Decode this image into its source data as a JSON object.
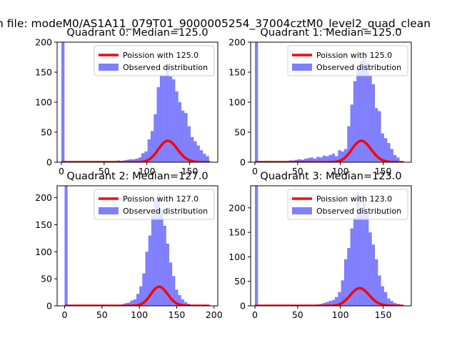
{
  "suptitle": "n file: modeM0/AS1A11_079T01_9000005254_37004cztM0_level2_quad_clean",
  "colors": {
    "poisson": "#ff0000",
    "observed": "#0000ff",
    "observed_alpha": 0.5
  },
  "chart_data": [
    {
      "type": "bar",
      "title": "Quadrant 0: Median=125.0",
      "xlim": [
        -5,
        183
      ],
      "ylim": [
        0,
        200
      ],
      "xticks": [
        0,
        50,
        100,
        150
      ],
      "yticks": [
        0,
        50,
        100,
        150,
        200
      ],
      "legend_position": "top-right",
      "legend": [
        "Poission with 125.0",
        "Observed distribution"
      ],
      "series": [
        {
          "name": "Poission with 125.0",
          "type": "line",
          "mean": 125.0,
          "scale": 1000,
          "x_range": [
            0,
            174
          ]
        },
        {
          "name": "Observed distribution",
          "type": "histogram",
          "bin_width": 3.6,
          "bins": [
            [
              0,
              200
            ],
            [
              3.6,
              2
            ],
            [
              7.2,
              2
            ],
            [
              10.8,
              2
            ],
            [
              14.4,
              2
            ],
            [
              18,
              2
            ],
            [
              21.6,
              2
            ],
            [
              25.2,
              2
            ],
            [
              28.8,
              2
            ],
            [
              32.4,
              2
            ],
            [
              36,
              2
            ],
            [
              39.6,
              2
            ],
            [
              43.2,
              2
            ],
            [
              46.8,
              2
            ],
            [
              50.4,
              2
            ],
            [
              54,
              2
            ],
            [
              57.6,
              2
            ],
            [
              61.2,
              2
            ],
            [
              64.8,
              3
            ],
            [
              68.4,
              2
            ],
            [
              72,
              3
            ],
            [
              75.6,
              4
            ],
            [
              79.2,
              5
            ],
            [
              82.8,
              5
            ],
            [
              86.4,
              6
            ],
            [
              90,
              8
            ],
            [
              93.6,
              15
            ],
            [
              97.2,
              18
            ],
            [
              100.8,
              38
            ],
            [
              104.4,
              52
            ],
            [
              108,
              80
            ],
            [
              111.6,
              125
            ],
            [
              115.2,
              146
            ],
            [
              118.8,
              145
            ],
            [
              122.4,
              160
            ],
            [
              126,
              143
            ],
            [
              129.6,
              138
            ],
            [
              133.2,
              118
            ],
            [
              136.8,
              100
            ],
            [
              140.4,
              86
            ],
            [
              144,
              82
            ],
            [
              147.6,
              60
            ],
            [
              151.2,
              42
            ],
            [
              154.8,
              35
            ],
            [
              158.4,
              28
            ],
            [
              162,
              20
            ],
            [
              165.6,
              14
            ],
            [
              169.2,
              10
            ]
          ]
        }
      ]
    },
    {
      "type": "bar",
      "title": "Quadrant 1: Median=125.0",
      "xlim": [
        -5,
        183
      ],
      "ylim": [
        0,
        200
      ],
      "xticks": [
        0,
        50,
        100,
        150
      ],
      "yticks": [
        0,
        50,
        100,
        150,
        200
      ],
      "legend_position": "top-right",
      "legend": [
        "Poission with 125.0",
        "Observed distribution"
      ],
      "series": [
        {
          "name": "Poission with 125.0",
          "type": "line",
          "mean": 125.0,
          "scale": 1000,
          "x_range": [
            0,
            174
          ]
        },
        {
          "name": "Observed distribution",
          "type": "histogram",
          "bin_width": 3.6,
          "bins": [
            [
              0,
              200
            ],
            [
              3.6,
              2
            ],
            [
              7.2,
              2
            ],
            [
              10.8,
              2
            ],
            [
              14.4,
              2
            ],
            [
              18,
              2
            ],
            [
              21.6,
              2
            ],
            [
              25.2,
              2
            ],
            [
              28.8,
              2
            ],
            [
              32.4,
              2
            ],
            [
              36,
              2
            ],
            [
              39.6,
              3
            ],
            [
              43.2,
              3
            ],
            [
              46.8,
              4
            ],
            [
              50.4,
              5
            ],
            [
              54,
              4
            ],
            [
              57.6,
              6
            ],
            [
              61.2,
              7
            ],
            [
              64.8,
              8
            ],
            [
              68.4,
              6
            ],
            [
              72,
              9
            ],
            [
              75.6,
              8
            ],
            [
              79.2,
              11
            ],
            [
              82.8,
              10
            ],
            [
              86.4,
              12
            ],
            [
              90,
              14
            ],
            [
              93.6,
              10
            ],
            [
              97.2,
              20
            ],
            [
              100.8,
              18
            ],
            [
              104.4,
              22
            ],
            [
              108,
              60
            ],
            [
              111.6,
              96
            ],
            [
              115.2,
              135
            ],
            [
              118.8,
              158
            ],
            [
              122.4,
              168
            ],
            [
              126,
              180
            ],
            [
              129.6,
              165
            ],
            [
              133.2,
              145
            ],
            [
              136.8,
              130
            ],
            [
              140.4,
              90
            ],
            [
              144,
              85
            ],
            [
              147.6,
              48
            ],
            [
              151.2,
              40
            ],
            [
              154.8,
              32
            ],
            [
              158.4,
              22
            ],
            [
              162,
              12
            ],
            [
              165.6,
              8
            ]
          ]
        }
      ]
    },
    {
      "type": "bar",
      "title": "Quadrant 2: Median=127.0",
      "xlim": [
        -10,
        205
      ],
      "ylim": [
        0,
        222
      ],
      "xticks": [
        0,
        50,
        100,
        150,
        200
      ],
      "yticks": [
        0,
        50,
        100,
        150,
        200
      ],
      "legend_position": "top-right",
      "legend": [
        "Poission with 127.0",
        "Observed distribution"
      ],
      "series": [
        {
          "name": "Poission with 127.0",
          "type": "line",
          "mean": 127.0,
          "scale": 1000,
          "x_range": [
            0,
            194
          ]
        },
        {
          "name": "Observed distribution",
          "type": "histogram",
          "bin_width": 4,
          "bins": [
            [
              0,
              222
            ],
            [
              4,
              1
            ],
            [
              8,
              1
            ],
            [
              12,
              1
            ],
            [
              16,
              1
            ],
            [
              20,
              1
            ],
            [
              24,
              1
            ],
            [
              28,
              1
            ],
            [
              32,
              1
            ],
            [
              36,
              1
            ],
            [
              40,
              1
            ],
            [
              44,
              1
            ],
            [
              48,
              1
            ],
            [
              52,
              1
            ],
            [
              56,
              1
            ],
            [
              60,
              1
            ],
            [
              64,
              1
            ],
            [
              68,
              1
            ],
            [
              72,
              2
            ],
            [
              76,
              3
            ],
            [
              80,
              5
            ],
            [
              84,
              6
            ],
            [
              88,
              10
            ],
            [
              92,
              12
            ],
            [
              96,
              22
            ],
            [
              100,
              36
            ],
            [
              104,
              60
            ],
            [
              108,
              100
            ],
            [
              112,
              130
            ],
            [
              116,
              168
            ],
            [
              120,
              198
            ],
            [
              124,
              208
            ],
            [
              128,
              180
            ],
            [
              132,
              148
            ],
            [
              136,
              115
            ],
            [
              140,
              80
            ],
            [
              144,
              55
            ],
            [
              148,
              30
            ],
            [
              152,
              20
            ],
            [
              156,
              12
            ],
            [
              160,
              7
            ],
            [
              164,
              4
            ],
            [
              168,
              2
            ],
            [
              172,
              1
            ],
            [
              176,
              1
            ],
            [
              180,
              1
            ],
            [
              184,
              1
            ],
            [
              188,
              1
            ],
            [
              192,
              1
            ]
          ]
        }
      ]
    },
    {
      "type": "bar",
      "title": "Quadrant 3: Median=123.0",
      "xlim": [
        -5,
        183
      ],
      "ylim": [
        0,
        245
      ],
      "xticks": [
        0,
        50,
        100,
        150
      ],
      "yticks": [
        0,
        50,
        100,
        150,
        200
      ],
      "legend_position": "top-right",
      "legend": [
        "Poission with 123.0",
        "Observed distribution"
      ],
      "series": [
        {
          "name": "Poission with 123.0",
          "type": "line",
          "mean": 123.0,
          "scale": 1000,
          "x_range": [
            0,
            174
          ]
        },
        {
          "name": "Observed distribution",
          "type": "histogram",
          "bin_width": 3.6,
          "bins": [
            [
              0,
              245
            ],
            [
              3.6,
              1
            ],
            [
              7.2,
              1
            ],
            [
              10.8,
              1
            ],
            [
              14.4,
              1
            ],
            [
              18,
              1
            ],
            [
              21.6,
              1
            ],
            [
              25.2,
              1
            ],
            [
              28.8,
              1
            ],
            [
              32.4,
              1
            ],
            [
              36,
              1
            ],
            [
              39.6,
              1
            ],
            [
              43.2,
              1
            ],
            [
              46.8,
              1
            ],
            [
              50.4,
              1
            ],
            [
              54,
              1
            ],
            [
              57.6,
              1
            ],
            [
              61.2,
              1
            ],
            [
              64.8,
              2
            ],
            [
              68.4,
              2
            ],
            [
              72,
              3
            ],
            [
              75.6,
              4
            ],
            [
              79.2,
              6
            ],
            [
              82.8,
              8
            ],
            [
              86.4,
              10
            ],
            [
              90,
              12
            ],
            [
              93.6,
              18
            ],
            [
              97.2,
              28
            ],
            [
              100.8,
              52
            ],
            [
              104.4,
              95
            ],
            [
              108,
              118
            ],
            [
              111.6,
              158
            ],
            [
              115.2,
              180
            ],
            [
              118.8,
              232
            ],
            [
              122.4,
              200
            ],
            [
              126,
              218
            ],
            [
              129.6,
              190
            ],
            [
              133.2,
              150
            ],
            [
              136.8,
              125
            ],
            [
              140.4,
              95
            ],
            [
              144,
              62
            ],
            [
              147.6,
              40
            ],
            [
              151.2,
              28
            ],
            [
              154.8,
              15
            ],
            [
              158.4,
              10
            ],
            [
              162,
              6
            ],
            [
              165.6,
              4
            ],
            [
              169.2,
              2
            ]
          ]
        }
      ]
    }
  ]
}
